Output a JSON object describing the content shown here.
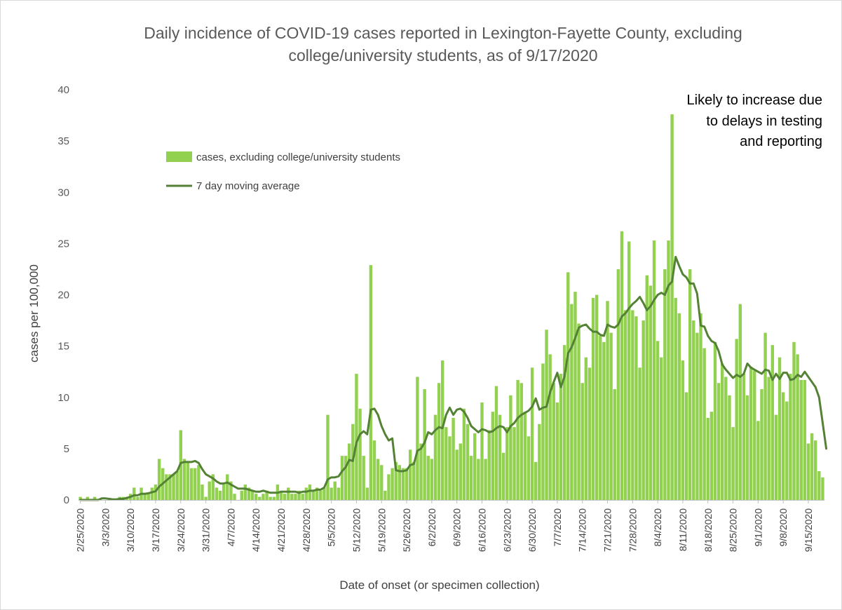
{
  "chart_data": {
    "type": "bar",
    "title_lines": [
      "Daily incidence of COVID-19 cases reported in Lexington-Fayette County, excluding",
      "college/university students, as of 9/17/2020"
    ],
    "xlabel": "Date of onset (or specimen collection)",
    "ylabel": "cases per 100,000",
    "ylim": [
      0,
      40
    ],
    "yticks": [
      0,
      5,
      10,
      15,
      20,
      25,
      30,
      35,
      40
    ],
    "start_date": "2/25/2020",
    "xtick_labels": [
      "2/25/2020",
      "3/3/2020",
      "3/10/2020",
      "3/17/2020",
      "3/24/2020",
      "3/31/2020",
      "4/7/2020",
      "4/14/2020",
      "4/21/2020",
      "4/28/2020",
      "5/5/2020",
      "5/12/2020",
      "5/19/2020",
      "5/26/2020",
      "6/2/2020",
      "6/9/2020",
      "6/16/2020",
      "6/23/2020",
      "6/30/2020",
      "7/7/2020",
      "7/14/2020",
      "7/21/2020",
      "7/28/2020",
      "8/4/2020",
      "8/11/2020",
      "8/18/2020",
      "8/25/2020",
      "9/1/2020",
      "9/8/2020",
      "9/15/2020"
    ],
    "grid": false,
    "legend_position": "upper-left",
    "series": [
      {
        "name": "cases, excluding college/university students",
        "kind": "bar",
        "color": "#92d050",
        "values": [
          0.3,
          0,
          0.3,
          0,
          0.3,
          0,
          0,
          0,
          0,
          0,
          0,
          0.3,
          0.3,
          0.3,
          0.6,
          1.2,
          0.3,
          1.2,
          0.6,
          0.6,
          1.2,
          1.5,
          4.0,
          3.1,
          2.5,
          2.5,
          2.5,
          2.8,
          6.8,
          4.0,
          3.7,
          3.1,
          3.1,
          3.4,
          1.5,
          0.3,
          1.8,
          2.5,
          1.2,
          0.9,
          1.5,
          2.5,
          1.8,
          0.6,
          0,
          0.9,
          1.5,
          1.2,
          0.9,
          0.6,
          0.3,
          0.6,
          0.9,
          0.3,
          0.3,
          1.5,
          0.9,
          0.6,
          1.2,
          0.6,
          0.6,
          0.9,
          0.6,
          1.2,
          1.5,
          0.9,
          1.2,
          0.9,
          1.2,
          8.3,
          1.2,
          1.8,
          1.2,
          4.3,
          4.3,
          5.5,
          7.4,
          12.3,
          8.9,
          4.3,
          1.2,
          22.9,
          5.8,
          4.0,
          3.4,
          0.9,
          2.5,
          3.1,
          3.7,
          3.4,
          3.1,
          3.1,
          4.9,
          3.7,
          12.0,
          5.5,
          10.8,
          4.3,
          4.0,
          8.3,
          11.4,
          13.6,
          7.1,
          6.2,
          8.0,
          4.9,
          5.5,
          8.9,
          7.4,
          4.3,
          6.5,
          4.0,
          9.5,
          4.0,
          6.8,
          8.6,
          11.1,
          8.3,
          4.6,
          7.1,
          10.2,
          7.1,
          11.7,
          11.4,
          8.6,
          6.2,
          12.9,
          3.7,
          7.4,
          13.3,
          16.6,
          14.2,
          11.4,
          9.5,
          12.3,
          15.1,
          22.2,
          19.1,
          20.3,
          17.2,
          11.4,
          13.9,
          12.9,
          19.7,
          20.0,
          16.0,
          15.4,
          19.4,
          16.3,
          10.8,
          22.5,
          26.2,
          18.5,
          25.2,
          18.5,
          17.9,
          12.9,
          17.5,
          21.9,
          20.9,
          25.3,
          15.5,
          13.9,
          22.5,
          25.3,
          37.6,
          19.7,
          18.2,
          13.6,
          10.5,
          22.5,
          17.5,
          16.3,
          18.2,
          14.8,
          8.0,
          8.6,
          15.4,
          11.4,
          13.3,
          12.0,
          10.2,
          7.1,
          15.7,
          19.1,
          12.3,
          10.2,
          13.0,
          12.6,
          7.7,
          10.8,
          16.3,
          12.0,
          15.1,
          8.3,
          13.9,
          10.5,
          9.6,
          12.3,
          15.4,
          14.2,
          11.7,
          11.7,
          5.5,
          6.5,
          5.8,
          2.8,
          2.2
        ]
      },
      {
        "name": "7 day moving average",
        "kind": "line",
        "color": "#548235",
        "values": [
          0,
          0,
          0,
          0,
          0,
          0,
          0.15,
          0.15,
          0.1,
          0.05,
          0.05,
          0.1,
          0.1,
          0.2,
          0.3,
          0.45,
          0.45,
          0.6,
          0.6,
          0.65,
          0.75,
          0.85,
          1.3,
          1.6,
          1.9,
          2.2,
          2.5,
          2.8,
          3.6,
          3.7,
          3.7,
          3.7,
          3.8,
          3.6,
          3.0,
          2.5,
          2.3,
          2.1,
          1.8,
          1.6,
          1.6,
          1.7,
          1.5,
          1.3,
          1.1,
          1.1,
          1.1,
          1.0,
          0.9,
          0.8,
          0.8,
          0.9,
          0.8,
          0.7,
          0.7,
          0.7,
          0.8,
          0.8,
          0.8,
          0.8,
          0.8,
          0.7,
          0.8,
          0.8,
          0.9,
          0.9,
          1.0,
          1.0,
          1.2,
          2.0,
          2.2,
          2.2,
          2.3,
          2.8,
          3.2,
          3.9,
          3.8,
          5.6,
          6.4,
          6.7,
          6.4,
          8.8,
          8.9,
          8.3,
          7.2,
          6.4,
          5.8,
          6.0,
          2.9,
          2.8,
          2.8,
          2.9,
          3.4,
          3.5,
          4.8,
          5.0,
          5.6,
          6.6,
          6.4,
          6.8,
          7.1,
          7.0,
          8.3,
          9.0,
          8.3,
          8.8,
          8.9,
          8.6,
          8.0,
          7.2,
          6.9,
          6.6,
          6.9,
          6.8,
          6.6,
          6.7,
          7.0,
          7.2,
          7.1,
          6.6,
          7.2,
          7.5,
          8.0,
          8.3,
          8.5,
          8.7,
          9.1,
          9.9,
          8.8,
          9.0,
          9.1,
          10.5,
          11.5,
          12.4,
          11.0,
          12.0,
          14.3,
          14.9,
          15.8,
          16.8,
          17.0,
          17.1,
          16.7,
          16.4,
          16.4,
          16.1,
          16.0,
          17.1,
          16.9,
          16.8,
          17.1,
          17.9,
          18.2,
          18.7,
          19.1,
          19.4,
          19.8,
          19.2,
          18.5,
          18.9,
          19.5,
          20.0,
          20.2,
          20.0,
          20.9,
          21.3,
          23.7,
          22.8,
          22.0,
          21.7,
          21.1,
          21.1,
          20.1,
          17.0,
          16.9,
          16.0,
          15.5,
          15.3,
          14.5,
          13.2,
          12.7,
          12.3,
          11.9,
          12.2,
          12.0,
          12.3,
          13.3,
          12.9,
          12.7,
          12.5,
          12.3,
          12.7,
          12.6,
          11.7,
          12.3,
          11.8,
          12.4,
          12.4,
          11.7,
          11.8,
          12.2,
          12.0,
          12.5,
          12.0,
          11.5,
          11.0,
          10.0,
          7.5,
          5.0
        ]
      }
    ],
    "shaded_region": {
      "label_lines": [
        "Likely to increase due",
        "to delays in testing",
        "and reporting"
      ],
      "from_index": 214,
      "color": "#d9d9d9"
    }
  }
}
